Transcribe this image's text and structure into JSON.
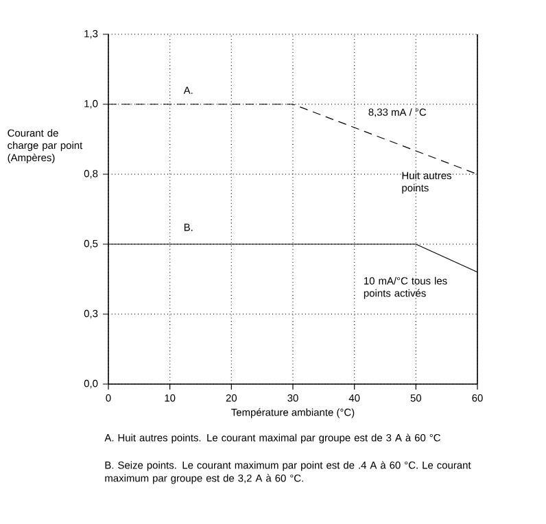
{
  "chart_data": {
    "type": "line",
    "xlabel": "Température ambiante (°C)",
    "ylabel": "Courant de charge par point (Ampères)",
    "xlim": [
      0,
      60
    ],
    "xticks": [
      0,
      10,
      20,
      30,
      40,
      50,
      60
    ],
    "ylim": [
      0,
      1.25
    ],
    "yticks": [
      {
        "value": 0,
        "label": "0,0"
      },
      {
        "value": 0.25,
        "label": "0,3"
      },
      {
        "value": 0.5,
        "label": "0,5"
      },
      {
        "value": 0.75,
        "label": "0,8"
      },
      {
        "value": 1.0,
        "label": "1,0"
      },
      {
        "value": 1.25,
        "label": "1,3"
      }
    ],
    "grid": true,
    "marker": "none",
    "series": [
      {
        "color": "#000000",
        "line_style": "dashed",
        "x": [
          0,
          30,
          60
        ],
        "values": [
          1.0,
          1.0,
          0.75
        ]
      },
      {
        "color": "#000000",
        "line_style": "solid",
        "x": [
          0,
          50,
          60
        ],
        "values": [
          0.5,
          0.5,
          0.4
        ]
      }
    ],
    "annotations": [
      "A.",
      "8,33 mA / °C",
      "Huit autres points",
      "B.",
      "10 mA/°C tous les points activés",
      "A. Huit autres points. Le courant maximal par groupe est de 3 A à 60 °C",
      "B. Seize points. Le courant maximum par point est de .4 A à 60 °C. Le courant maximum par groupe est de 3,2 A à 60 °C."
    ]
  }
}
